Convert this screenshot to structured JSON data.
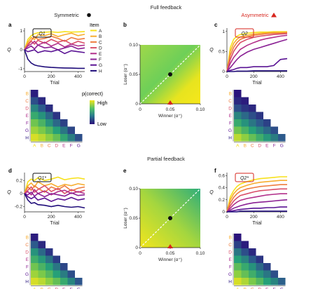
{
  "headers": {
    "full": "Full feedback",
    "partial": "Partial feedback",
    "symmetric": "Symmetric",
    "asymmetric": "Asymmetric"
  },
  "panel_letters": [
    "a",
    "b",
    "c",
    "d",
    "e",
    "f"
  ],
  "colors": {
    "items": [
      "#f7e11c",
      "#f7ad2f",
      "#ee7d3f",
      "#d94f69",
      "#b22f8a",
      "#8a2194",
      "#5a1394",
      "#1f0c7a"
    ],
    "asymmetric_marker": "#d7261e",
    "heat_low": "#2b0f7a",
    "heat_high": "#f2e41d"
  },
  "legends": {
    "item_title": "Item",
    "items": [
      "A",
      "B",
      "C",
      "D",
      "E",
      "F",
      "G",
      "H"
    ],
    "colorbar_title": "p(correct)",
    "colorbar_high": "High",
    "colorbar_low": "Low"
  },
  "chart_data": [
    {
      "panel": "a",
      "type": "line",
      "box_label": "Q1",
      "xlabel": "Trial",
      "ylabel": "Q",
      "xticks": [
        0,
        200,
        400
      ],
      "yticks": [
        -1,
        0,
        1
      ],
      "xlim": [
        0,
        450
      ],
      "ylim": [
        -1.15,
        1.15
      ],
      "x": [
        0,
        25,
        50,
        75,
        100,
        150,
        200,
        250,
        300,
        350,
        400,
        450
      ],
      "series": [
        {
          "name": "A",
          "values": [
            0,
            0.55,
            0.75,
            0.85,
            0.9,
            0.93,
            0.95,
            0.92,
            0.96,
            0.94,
            0.95,
            0.96
          ]
        },
        {
          "name": "B",
          "values": [
            0,
            0.4,
            0.65,
            0.55,
            0.8,
            0.75,
            0.85,
            0.7,
            0.8,
            0.88,
            0.75,
            0.82
          ]
        },
        {
          "name": "C",
          "values": [
            0,
            0.3,
            0.5,
            0.7,
            0.55,
            0.6,
            0.72,
            0.6,
            0.45,
            0.65,
            0.55,
            0.6
          ]
        },
        {
          "name": "D",
          "values": [
            0,
            0.25,
            0.45,
            0.3,
            0.5,
            0.35,
            0.55,
            0.4,
            0.5,
            0.3,
            0.45,
            0.35
          ]
        },
        {
          "name": "E",
          "values": [
            0,
            0.2,
            0.3,
            0.45,
            0.25,
            0.4,
            0.2,
            0.35,
            0.15,
            0.3,
            0.2,
            0.25
          ]
        },
        {
          "name": "F",
          "values": [
            0,
            0.1,
            0.2,
            0.05,
            0.25,
            0.1,
            0.15,
            0.0,
            0.1,
            0.2,
            0.05,
            0.1
          ]
        },
        {
          "name": "G",
          "values": [
            0,
            -0.1,
            -0.05,
            0.0,
            -0.15,
            -0.05,
            -0.1,
            0.0,
            -0.2,
            -0.05,
            -0.1,
            -0.15
          ]
        },
        {
          "name": "H",
          "values": [
            0,
            -0.5,
            -0.7,
            -0.8,
            -0.85,
            -0.9,
            -0.93,
            -0.95,
            -0.96,
            -0.97,
            -0.98,
            -0.98
          ]
        }
      ]
    },
    {
      "panel": "b",
      "type": "heatmap",
      "xlabel": "Winner (α⁺)",
      "ylabel": "Loser (α⁻)",
      "xticks": [
        0,
        0.05,
        0.1
      ],
      "yticks": [
        0,
        0.05,
        0.1
      ],
      "xlim": [
        0,
        0.1
      ],
      "ylim": [
        0,
        0.1
      ],
      "marker_points": [
        {
          "x": 0.05,
          "y": 0.05,
          "shape": "circle"
        },
        {
          "x": 0.05,
          "y": 0,
          "shape": "triangle"
        }
      ],
      "diagonal": true
    },
    {
      "panel": "c",
      "type": "line",
      "box_label": "Q2",
      "xlabel": "Trial",
      "ylabel": "Q",
      "xticks": [
        0,
        200,
        400
      ],
      "yticks": [
        0,
        0.5,
        1.0
      ],
      "xlim": [
        0,
        450
      ],
      "ylim": [
        0,
        1.08
      ],
      "x": [
        0,
        25,
        50,
        75,
        100,
        150,
        200,
        250,
        300,
        350,
        400,
        450
      ],
      "series": [
        {
          "name": "A",
          "values": [
            0,
            0.6,
            0.8,
            0.88,
            0.92,
            0.95,
            0.97,
            0.98,
            0.98,
            0.99,
            0.99,
            0.99
          ]
        },
        {
          "name": "B",
          "values": [
            0,
            0.5,
            0.7,
            0.8,
            0.86,
            0.9,
            0.93,
            0.95,
            0.96,
            0.97,
            0.97,
            0.98
          ]
        },
        {
          "name": "C",
          "values": [
            0,
            0.4,
            0.6,
            0.72,
            0.8,
            0.86,
            0.9,
            0.92,
            0.94,
            0.95,
            0.95,
            0.96
          ]
        },
        {
          "name": "D",
          "values": [
            0,
            0.3,
            0.5,
            0.62,
            0.72,
            0.8,
            0.85,
            0.88,
            0.9,
            0.92,
            0.93,
            0.94
          ]
        },
        {
          "name": "E",
          "values": [
            0,
            0.2,
            0.35,
            0.45,
            0.55,
            0.65,
            0.72,
            0.78,
            0.82,
            0.85,
            0.88,
            0.9
          ]
        },
        {
          "name": "F",
          "values": [
            0,
            0.1,
            0.2,
            0.3,
            0.38,
            0.48,
            0.55,
            0.6,
            0.65,
            0.7,
            0.75,
            0.8
          ]
        },
        {
          "name": "G",
          "values": [
            0,
            0.03,
            0.05,
            0.08,
            0.1,
            0.1,
            0.12,
            0.12,
            0.12,
            0.15,
            0.3,
            0.32
          ]
        },
        {
          "name": "H",
          "values": [
            0,
            0.0,
            0.0,
            0.01,
            0.01,
            0.01,
            0.02,
            0.02,
            0.02,
            0.02,
            0.02,
            0.02
          ]
        }
      ]
    },
    {
      "panel": "d",
      "type": "line",
      "box_label": "Q1*",
      "xlabel": "Trial",
      "ylabel": "Q",
      "xticks": [
        0,
        200,
        400
      ],
      "yticks": [
        -0.2,
        0,
        0.2
      ],
      "xlim": [
        0,
        450
      ],
      "ylim": [
        -0.28,
        0.32
      ],
      "x": [
        0,
        25,
        50,
        75,
        100,
        150,
        200,
        250,
        300,
        350,
        400,
        450
      ],
      "series": [
        {
          "name": "A",
          "values": [
            0,
            0.18,
            0.22,
            0.2,
            0.24,
            0.2,
            0.22,
            0.25,
            0.21,
            0.23,
            0.24,
            0.22
          ]
        },
        {
          "name": "B",
          "values": [
            0,
            0.12,
            0.16,
            0.1,
            0.18,
            0.12,
            0.15,
            0.1,
            0.14,
            0.12,
            0.15,
            0.13
          ]
        },
        {
          "name": "C",
          "values": [
            0,
            0.1,
            0.05,
            0.12,
            0.08,
            0.02,
            0.1,
            0.06,
            0.12,
            0.04,
            0.08,
            0.1
          ]
        },
        {
          "name": "D",
          "values": [
            0,
            0.05,
            0.1,
            0.02,
            0.06,
            0.12,
            0.03,
            0.08,
            0.0,
            0.06,
            0.02,
            0.05
          ]
        },
        {
          "name": "E",
          "values": [
            0,
            0.03,
            -0.02,
            0.06,
            0.0,
            0.04,
            -0.02,
            0.03,
            0.05,
            0.0,
            0.03,
            0.0
          ]
        },
        {
          "name": "F",
          "values": [
            0,
            -0.02,
            0.02,
            -0.04,
            0.0,
            -0.05,
            0.0,
            -0.02,
            -0.04,
            0.01,
            -0.03,
            -0.02
          ]
        },
        {
          "name": "G",
          "values": [
            0,
            -0.05,
            -0.08,
            -0.05,
            -0.1,
            -0.07,
            -0.12,
            -0.08,
            -0.1,
            -0.06,
            -0.1,
            -0.08
          ]
        },
        {
          "name": "H",
          "values": [
            0,
            -0.1,
            -0.15,
            -0.14,
            -0.17,
            -0.18,
            -0.2,
            -0.18,
            -0.2,
            -0.21,
            -0.2,
            -0.22
          ]
        }
      ]
    },
    {
      "panel": "e",
      "type": "heatmap",
      "xlabel": "Winner (α⁺)",
      "ylabel": "Loser (α⁻)",
      "xticks": [
        0,
        0.05,
        0.1
      ],
      "yticks": [
        0,
        0.05,
        0.1
      ],
      "xlim": [
        0,
        0.1
      ],
      "ylim": [
        0,
        0.1
      ],
      "marker_points": [
        {
          "x": 0.05,
          "y": 0.05,
          "shape": "circle"
        },
        {
          "x": 0.05,
          "y": 0,
          "shape": "triangle"
        }
      ],
      "diagonal": true
    },
    {
      "panel": "f",
      "type": "line",
      "box_label": "Q2*",
      "xlabel": "Trial",
      "ylabel": "Q",
      "xticks": [
        0,
        200,
        400
      ],
      "yticks": [
        0,
        0.2,
        0.4,
        0.6
      ],
      "xlim": [
        0,
        450
      ],
      "ylim": [
        0,
        0.65
      ],
      "x": [
        0,
        25,
        50,
        75,
        100,
        150,
        200,
        250,
        300,
        350,
        400,
        450
      ],
      "series": [
        {
          "name": "A",
          "values": [
            0,
            0.25,
            0.35,
            0.42,
            0.46,
            0.5,
            0.53,
            0.55,
            0.56,
            0.57,
            0.58,
            0.58
          ]
        },
        {
          "name": "B",
          "values": [
            0,
            0.2,
            0.3,
            0.36,
            0.4,
            0.44,
            0.47,
            0.49,
            0.5,
            0.51,
            0.52,
            0.52
          ]
        },
        {
          "name": "C",
          "values": [
            0,
            0.15,
            0.24,
            0.3,
            0.34,
            0.38,
            0.4,
            0.42,
            0.43,
            0.44,
            0.45,
            0.45
          ]
        },
        {
          "name": "D",
          "values": [
            0,
            0.1,
            0.18,
            0.23,
            0.27,
            0.3,
            0.33,
            0.35,
            0.36,
            0.37,
            0.38,
            0.38
          ]
        },
        {
          "name": "E",
          "values": [
            0,
            0.06,
            0.12,
            0.16,
            0.19,
            0.22,
            0.24,
            0.26,
            0.28,
            0.29,
            0.3,
            0.3
          ]
        },
        {
          "name": "F",
          "values": [
            0,
            0.03,
            0.06,
            0.08,
            0.1,
            0.13,
            0.15,
            0.16,
            0.17,
            0.18,
            0.19,
            0.2
          ]
        },
        {
          "name": "G",
          "values": [
            0,
            0.01,
            0.02,
            0.03,
            0.04,
            0.05,
            0.06,
            0.06,
            0.07,
            0.07,
            0.08,
            0.08
          ]
        },
        {
          "name": "H",
          "values": [
            0,
            0.0,
            0.0,
            0.0,
            0.01,
            0.01,
            0.01,
            0.01,
            0.01,
            0.01,
            0.01,
            0.01
          ]
        }
      ]
    },
    {
      "panel": "a-tri",
      "type": "heatmap",
      "rows": [
        "B",
        "C",
        "D",
        "E",
        "F",
        "G",
        "H"
      ],
      "cols": [
        "A",
        "B",
        "C",
        "D",
        "E",
        "F",
        "G"
      ],
      "values": [
        [
          0.05
        ],
        [
          0.25,
          0.1
        ],
        [
          0.45,
          0.3,
          0.12
        ],
        [
          0.6,
          0.5,
          0.35,
          0.15
        ],
        [
          0.75,
          0.65,
          0.5,
          0.35,
          0.2
        ],
        [
          0.85,
          0.78,
          0.68,
          0.55,
          0.4,
          0.22
        ],
        [
          0.95,
          0.9,
          0.82,
          0.72,
          0.58,
          0.42,
          0.25
        ]
      ]
    },
    {
      "panel": "c-tri",
      "type": "heatmap",
      "rows": [
        "B",
        "C",
        "D",
        "E",
        "F",
        "G",
        "H"
      ],
      "cols": [
        "A",
        "B",
        "C",
        "D",
        "E",
        "F",
        "G"
      ],
      "values": [
        [
          0.02
        ],
        [
          0.1,
          0.05
        ],
        [
          0.25,
          0.15,
          0.1
        ],
        [
          0.45,
          0.35,
          0.25,
          0.15
        ],
        [
          0.6,
          0.5,
          0.4,
          0.3,
          0.2
        ],
        [
          0.75,
          0.65,
          0.55,
          0.45,
          0.35,
          0.25
        ],
        [
          0.9,
          0.82,
          0.72,
          0.62,
          0.52,
          0.42,
          0.3
        ]
      ]
    },
    {
      "panel": "d-tri",
      "type": "heatmap",
      "rows": [
        "B",
        "C",
        "D",
        "E",
        "F",
        "G",
        "H"
      ],
      "cols": [
        "A",
        "B",
        "C",
        "D",
        "E",
        "F",
        "G"
      ],
      "values": [
        [
          0.05
        ],
        [
          0.3,
          0.1
        ],
        [
          0.5,
          0.35,
          0.15
        ],
        [
          0.62,
          0.52,
          0.38,
          0.18
        ],
        [
          0.75,
          0.65,
          0.55,
          0.4,
          0.22
        ],
        [
          0.85,
          0.78,
          0.68,
          0.55,
          0.42,
          0.25
        ],
        [
          0.95,
          0.9,
          0.82,
          0.72,
          0.6,
          0.45,
          0.28
        ]
      ]
    },
    {
      "panel": "f-tri",
      "type": "heatmap",
      "rows": [
        "B",
        "C",
        "D",
        "E",
        "F",
        "G",
        "H"
      ],
      "cols": [
        "A",
        "B",
        "C",
        "D",
        "E",
        "F",
        "G"
      ],
      "values": [
        [
          0.02
        ],
        [
          0.2,
          0.05
        ],
        [
          0.4,
          0.25,
          0.1
        ],
        [
          0.55,
          0.45,
          0.3,
          0.15
        ],
        [
          0.7,
          0.6,
          0.5,
          0.35,
          0.2
        ],
        [
          0.82,
          0.72,
          0.62,
          0.5,
          0.4,
          0.25
        ],
        [
          0.95,
          0.88,
          0.78,
          0.68,
          0.55,
          0.45,
          0.32
        ]
      ]
    }
  ]
}
